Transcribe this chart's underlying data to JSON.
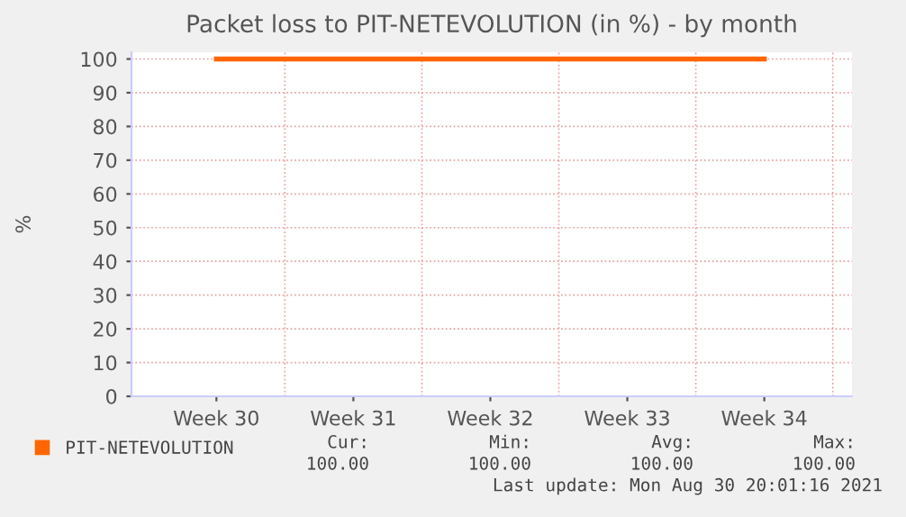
{
  "chart_data": {
    "type": "line",
    "title": "Packet loss to PIT-NETEVOLUTION (in %) - by month",
    "ylabel": "%",
    "categories": [
      "Week 30",
      "Week 31",
      "Week 32",
      "Week 33",
      "Week 34"
    ],
    "series": [
      {
        "name": "PIT-NETEVOLUTION",
        "color": "#ff6600",
        "values": [
          100,
          100,
          100,
          100,
          100
        ]
      }
    ],
    "ylim": [
      0,
      102
    ],
    "yticks": [
      0,
      10,
      20,
      30,
      40,
      50,
      60,
      70,
      80,
      90,
      100
    ],
    "grid": true,
    "legend": "bottom",
    "marker": "none",
    "line_style": "solid",
    "annotations": [
      "Cur:",
      "Min:",
      "Avg:",
      "Max:",
      "100.00",
      "100.00",
      "100.00",
      "100.00",
      "Last update: Mon Aug 30 20:01:16 2021"
    ]
  }
}
